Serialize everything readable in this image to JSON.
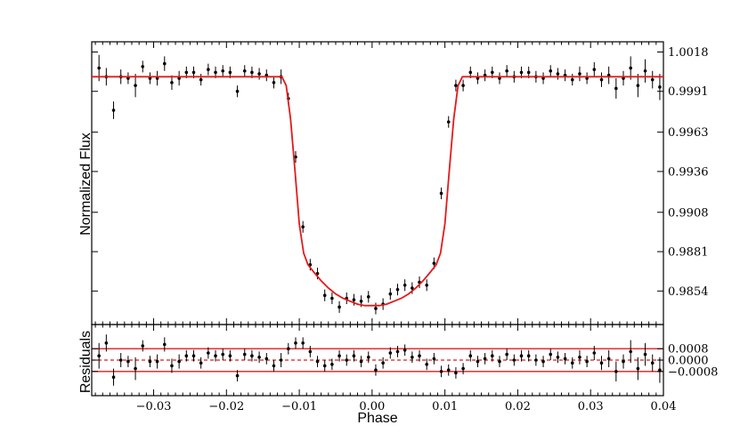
{
  "chart_data": [
    {
      "type": "scatter",
      "panel": "top",
      "ylabel": "Normalized Flux",
      "xlim": [
        -0.0385,
        0.04
      ],
      "ylim": [
        0.9831,
        1.0025
      ],
      "yticks": [
        1.0018,
        0.9991,
        0.9963,
        0.9936,
        0.9908,
        0.9881,
        0.9854
      ],
      "ytick_side": "right",
      "grid": false,
      "series": [
        {
          "kind": "points-with-errorbars",
          "color": "#000000",
          "x": [
            -0.0375,
            -0.0365,
            -0.0355,
            -0.0345,
            -0.0335,
            -0.0325,
            -0.0315,
            -0.0305,
            -0.0295,
            -0.0285,
            -0.0275,
            -0.0265,
            -0.0255,
            -0.0245,
            -0.0235,
            -0.0225,
            -0.0215,
            -0.0205,
            -0.0195,
            -0.0185,
            -0.0175,
            -0.0165,
            -0.0155,
            -0.0145,
            -0.0135,
            -0.0125,
            -0.0115,
            -0.0105,
            -0.0095,
            -0.0085,
            -0.0075,
            -0.0065,
            -0.0055,
            -0.0045,
            -0.0035,
            -0.0025,
            -0.0015,
            -0.0005,
            0.0005,
            0.0015,
            0.0025,
            0.0035,
            0.0045,
            0.0055,
            0.0065,
            0.0075,
            0.0085,
            0.0095,
            0.0105,
            0.0115,
            0.0125,
            0.0135,
            0.0145,
            0.0155,
            0.0165,
            0.0175,
            0.0185,
            0.0195,
            0.0205,
            0.0215,
            0.0225,
            0.0235,
            0.0245,
            0.0255,
            0.0265,
            0.0275,
            0.0285,
            0.0295,
            0.0305,
            0.0315,
            0.0325,
            0.0335,
            0.0345,
            0.0355,
            0.0365,
            0.0375,
            0.0385,
            0.0395
          ],
          "y": [
            1.0007,
            1.0001,
            0.9978,
            1.0001,
            1.0,
            0.9995,
            1.0008,
            1.0,
            1.0,
            1.001,
            0.9997,
            1.0,
            1.0004,
            1.0004,
            0.9999,
            1.0006,
            1.0004,
            1.0005,
            1.0004,
            0.9991,
            1.0005,
            1.0004,
            1.0003,
            1.0002,
            0.9997,
            1.0001,
            0.9986,
            0.9946,
            0.9898,
            0.9872,
            0.9866,
            0.9851,
            0.9849,
            0.9843,
            0.9849,
            0.9848,
            0.9847,
            0.985,
            0.9842,
            0.9845,
            0.9852,
            0.9855,
            0.9858,
            0.9856,
            0.986,
            0.9858,
            0.9873,
            0.9921,
            0.997,
            0.9995,
            0.9995,
            1.0004,
            1.0,
            1.0002,
            1.0004,
            1.0,
            1.0005,
            1.0001,
            1.0004,
            1.0004,
            1.0001,
            1.0,
            1.0005,
            1.0003,
            1.0002,
            0.9999,
            1.0003,
            1.0,
            1.0006,
            0.9999,
            1.0002,
            0.9993,
            1.0,
            1.0007,
            0.9995,
            1.0005,
            0.9999,
            0.9994
          ],
          "yerr": [
            0.0009,
            0.0006,
            0.0006,
            0.0005,
            0.0004,
            0.0008,
            0.0004,
            0.0004,
            0.0005,
            0.0005,
            0.0005,
            0.0005,
            0.0004,
            0.0004,
            0.0004,
            0.0004,
            0.0004,
            0.0004,
            0.0004,
            0.0004,
            0.0004,
            0.0004,
            0.0004,
            0.0004,
            0.0004,
            0.0005,
            0.0004,
            0.0004,
            0.0004,
            0.0004,
            0.0004,
            0.0004,
            0.0004,
            0.0004,
            0.0004,
            0.0004,
            0.0004,
            0.0004,
            0.0004,
            0.0004,
            0.0004,
            0.0004,
            0.0004,
            0.0004,
            0.0004,
            0.0004,
            0.0004,
            0.0004,
            0.0004,
            0.0004,
            0.0004,
            0.0004,
            0.0004,
            0.0004,
            0.0004,
            0.0004,
            0.0004,
            0.0004,
            0.0004,
            0.0004,
            0.0004,
            0.0004,
            0.0004,
            0.0004,
            0.0004,
            0.0004,
            0.0005,
            0.0004,
            0.0005,
            0.0005,
            0.0006,
            0.0007,
            0.0005,
            0.0008,
            0.0008,
            0.0008,
            0.0006,
            0.0009
          ]
        },
        {
          "kind": "model-line",
          "color": "#e31a1c",
          "x": [
            -0.0385,
            -0.0124,
            -0.0118,
            -0.0112,
            -0.0106,
            -0.01,
            -0.0094,
            -0.0088,
            -0.008,
            -0.007,
            -0.006,
            -0.005,
            -0.004,
            -0.003,
            -0.002,
            -0.001,
            0.0,
            0.001,
            0.002,
            0.003,
            0.004,
            0.005,
            0.006,
            0.007,
            0.008,
            0.0088,
            0.0094,
            0.01,
            0.0106,
            0.0112,
            0.0118,
            0.0124,
            0.04
          ],
          "y": [
            1.0001,
            1.0001,
            0.9995,
            0.9972,
            0.9937,
            0.99,
            0.988,
            0.9872,
            0.9867,
            0.9861,
            0.9856,
            0.9852,
            0.9849,
            0.9847,
            0.9845,
            0.9844,
            0.9844,
            0.9844,
            0.9845,
            0.9847,
            0.9849,
            0.9852,
            0.9856,
            0.9861,
            0.9867,
            0.9872,
            0.988,
            0.99,
            0.9937,
            0.9972,
            0.9995,
            1.0001,
            1.0001
          ]
        }
      ]
    },
    {
      "type": "scatter",
      "panel": "bottom",
      "xlabel": "Phase",
      "ylabel": "Residuals",
      "xlim": [
        -0.0385,
        0.04
      ],
      "ylim": [
        -0.0025,
        0.0025
      ],
      "xticks": [
        -0.03,
        -0.02,
        -0.01,
        0.0,
        0.01,
        0.02,
        0.03,
        0.04
      ],
      "xtick_labels": [
        "−0.03",
        "−0.02",
        "−0.01",
        "0.00",
        "0.01",
        "0.02",
        "0.03",
        "0.04"
      ],
      "yticks": [
        0.0008,
        0.0,
        -0.0008
      ],
      "ytick_labels": [
        "0.0008",
        "0.0000",
        "−0.0008"
      ],
      "ytick_side": "right",
      "reference_lines": [
        {
          "y": 0.0,
          "style": "dashed",
          "color": "#e31a1c"
        },
        {
          "y": 0.0008,
          "style": "solid",
          "color": "#e31a1c"
        },
        {
          "y": -0.0008,
          "style": "solid",
          "color": "#e31a1c"
        }
      ],
      "series": [
        {
          "kind": "points-with-errorbars",
          "color": "#000000",
          "x": [
            -0.0375,
            -0.0365,
            -0.0355,
            -0.0345,
            -0.0335,
            -0.0325,
            -0.0315,
            -0.0305,
            -0.0295,
            -0.0285,
            -0.0275,
            -0.0265,
            -0.0255,
            -0.0245,
            -0.0235,
            -0.0225,
            -0.0215,
            -0.0205,
            -0.0195,
            -0.0185,
            -0.0175,
            -0.0165,
            -0.0155,
            -0.0145,
            -0.0135,
            -0.0125,
            -0.0115,
            -0.0105,
            -0.0095,
            -0.0085,
            -0.0075,
            -0.0065,
            -0.0055,
            -0.0045,
            -0.0035,
            -0.0025,
            -0.0015,
            -0.0005,
            0.0005,
            0.0015,
            0.0025,
            0.0035,
            0.0045,
            0.0055,
            0.0065,
            0.0075,
            0.0085,
            0.0095,
            0.0105,
            0.0115,
            0.0125,
            0.0135,
            0.0145,
            0.0155,
            0.0165,
            0.0175,
            0.0185,
            0.0195,
            0.0205,
            0.0215,
            0.0225,
            0.0235,
            0.0245,
            0.0255,
            0.0265,
            0.0275,
            0.0285,
            0.0295,
            0.0305,
            0.0315,
            0.0325,
            0.0335,
            0.0345,
            0.0355,
            0.0365,
            0.0375,
            0.0385,
            0.0395
          ],
          "y": [
            0.0003,
            0.0012,
            -0.0012,
            0.0,
            -0.0001,
            -0.0006,
            0.001,
            -0.0001,
            -0.0001,
            0.0011,
            -0.0004,
            -0.0001,
            0.0003,
            0.0003,
            -0.0002,
            0.0005,
            0.0003,
            0.0004,
            0.0003,
            -0.0011,
            0.0004,
            0.0003,
            0.0002,
            0.0001,
            -0.0004,
            0.0,
            0.0008,
            0.0012,
            0.0012,
            0.0006,
            -0.0001,
            -0.0004,
            -0.0003,
            0.0003,
            0.0,
            0.0003,
            -0.0001,
            0.0002,
            -0.0007,
            -0.0002,
            0.0005,
            0.0006,
            0.0007,
            0.0002,
            0.0003,
            -0.0003,
            0.0001,
            -0.0008,
            -0.0007,
            -0.0009,
            -0.0006,
            0.0003,
            -0.0001,
            0.0001,
            0.0003,
            -0.0001,
            0.0004,
            0.0,
            0.0003,
            0.0003,
            0.0,
            -0.0001,
            0.0004,
            0.0002,
            0.0001,
            -0.0002,
            0.0002,
            -0.0001,
            0.0005,
            -0.0002,
            0.0001,
            -0.0008,
            -0.0001,
            0.0006,
            -0.0006,
            0.0004,
            -0.0002,
            -0.0007
          ],
          "yerr": [
            0.0009,
            0.0006,
            0.0006,
            0.0005,
            0.0004,
            0.0008,
            0.0004,
            0.0004,
            0.0005,
            0.0005,
            0.0005,
            0.0005,
            0.0004,
            0.0004,
            0.0004,
            0.0004,
            0.0004,
            0.0004,
            0.0004,
            0.0004,
            0.0004,
            0.0004,
            0.0004,
            0.0004,
            0.0004,
            0.0005,
            0.0004,
            0.0004,
            0.0004,
            0.0004,
            0.0004,
            0.0004,
            0.0004,
            0.0004,
            0.0004,
            0.0004,
            0.0004,
            0.0004,
            0.0004,
            0.0004,
            0.0004,
            0.0004,
            0.0004,
            0.0004,
            0.0004,
            0.0004,
            0.0004,
            0.0004,
            0.0004,
            0.0004,
            0.0004,
            0.0004,
            0.0004,
            0.0004,
            0.0004,
            0.0004,
            0.0004,
            0.0004,
            0.0004,
            0.0004,
            0.0004,
            0.0004,
            0.0004,
            0.0004,
            0.0004,
            0.0004,
            0.0005,
            0.0004,
            0.0005,
            0.0005,
            0.0006,
            0.0007,
            0.0005,
            0.0008,
            0.0008,
            0.0008,
            0.0006,
            0.0009
          ]
        }
      ]
    }
  ]
}
